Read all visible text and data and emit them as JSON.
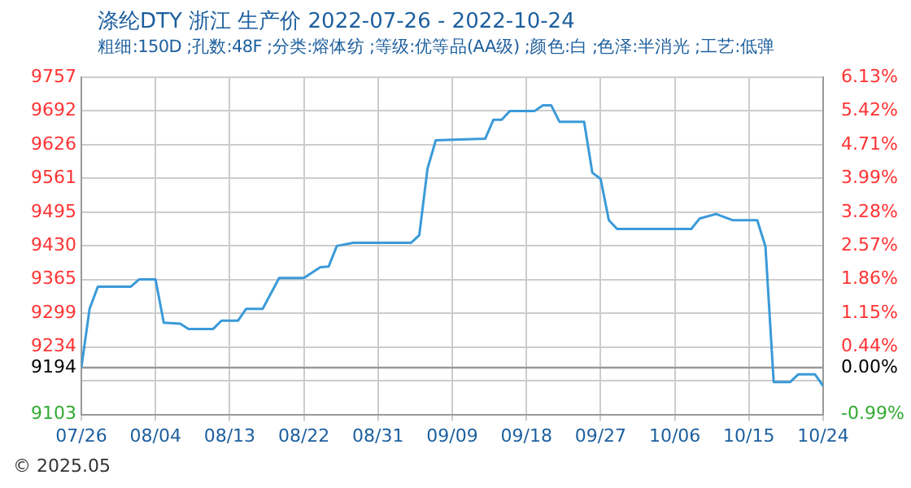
{
  "chart_data": {
    "type": "line",
    "title": "涤纶DTY 浙江 生产价 2022-07-26 - 2022-10-24",
    "subtitle": "粗细:150D ;孔数:48F ;分类:熔体纺 ;等级:优等品(AA级) ;颜色:白 ;色泽:半消光 ;工艺:低弹",
    "x": [
      "2022-07-26",
      "2022-07-27",
      "2022-07-28",
      "2022-08-01",
      "2022-08-02",
      "2022-08-04",
      "2022-08-05",
      "2022-08-07",
      "2022-08-08",
      "2022-08-11",
      "2022-08-12",
      "2022-08-14",
      "2022-08-15",
      "2022-08-17",
      "2022-08-19",
      "2022-08-22",
      "2022-08-24",
      "2022-08-25",
      "2022-08-26",
      "2022-08-28",
      "2022-09-04",
      "2022-09-05",
      "2022-09-06",
      "2022-09-07",
      "2022-09-13",
      "2022-09-14",
      "2022-09-15",
      "2022-09-16",
      "2022-09-19",
      "2022-09-20",
      "2022-09-21",
      "2022-09-22",
      "2022-09-25",
      "2022-09-26",
      "2022-09-27",
      "2022-09-28",
      "2022-09-29",
      "2022-10-08",
      "2022-10-09",
      "2022-10-11",
      "2022-10-13",
      "2022-10-16",
      "2022-10-17",
      "2022-10-18",
      "2022-10-20",
      "2022-10-21",
      "2022-10-23",
      "2022-10-24"
    ],
    "series": [
      {
        "color": "#3a9ad9",
        "values": [
          9194,
          9308,
          9351,
          9351,
          9365,
          9365,
          9281,
          9279,
          9269,
          9269,
          9285,
          9285,
          9308,
          9308,
          9368,
          9368,
          9389,
          9390,
          9430,
          9436,
          9436,
          9451,
          9580,
          9635,
          9638,
          9675,
          9675,
          9692,
          9692,
          9703,
          9703,
          9671,
          9671,
          9572,
          9560,
          9480,
          9463,
          9463,
          9483,
          9492,
          9480,
          9480,
          9429,
          9166,
          9166,
          9181,
          9181,
          9158
        ]
      }
    ],
    "xlim": [
      "2022-07-26",
      "2022-10-24"
    ],
    "xticks": [
      {
        "value": "2022-07-26",
        "label": "07/26"
      },
      {
        "value": "2022-08-04",
        "label": "08/04"
      },
      {
        "value": "2022-08-13",
        "label": "08/13"
      },
      {
        "value": "2022-08-22",
        "label": "08/22"
      },
      {
        "value": "2022-08-31",
        "label": "08/31"
      },
      {
        "value": "2022-09-09",
        "label": "09/09"
      },
      {
        "value": "2022-09-18",
        "label": "09/18"
      },
      {
        "value": "2022-09-27",
        "label": "09/27"
      },
      {
        "value": "2022-10-06",
        "label": "10/06"
      },
      {
        "value": "2022-10-15",
        "label": "10/15"
      },
      {
        "value": "2022-10-24",
        "label": "10/24"
      }
    ],
    "ylim": [
      9103,
      9757
    ],
    "yticks": [
      9103,
      {
        "value": 9168.6,
        "label": null
      },
      9234,
      9299,
      9365,
      9430,
      9495,
      9561,
      9626,
      9692,
      9757
    ],
    "y2lim": [
      -0.99,
      6.13
    ],
    "y2ticks": [
      {
        "value": -0.99,
        "label": "-0.99%"
      },
      {
        "value": 0,
        "label": "0.00%"
      },
      {
        "value": 0.44,
        "label": "0.44%"
      },
      {
        "value": 1.15,
        "label": "1.15%"
      },
      {
        "value": 1.86,
        "label": "1.86%"
      },
      {
        "value": 2.57,
        "label": "2.57%"
      },
      {
        "value": 3.28,
        "label": "3.28%"
      },
      {
        "value": 3.99,
        "label": "3.99%"
      },
      {
        "value": 4.71,
        "label": "4.71%"
      },
      {
        "value": 5.42,
        "label": "5.42%"
      },
      {
        "value": 6.13,
        "label": "6.13%"
      }
    ],
    "ref_lines": [
      {
        "axis": "y",
        "value": 9194,
        "label": "9194",
        "color": "#999999"
      }
    ],
    "annotations": [
      "© 2025.05"
    ],
    "grid": true,
    "legend": false,
    "marker": "none",
    "line_style": "solid"
  }
}
